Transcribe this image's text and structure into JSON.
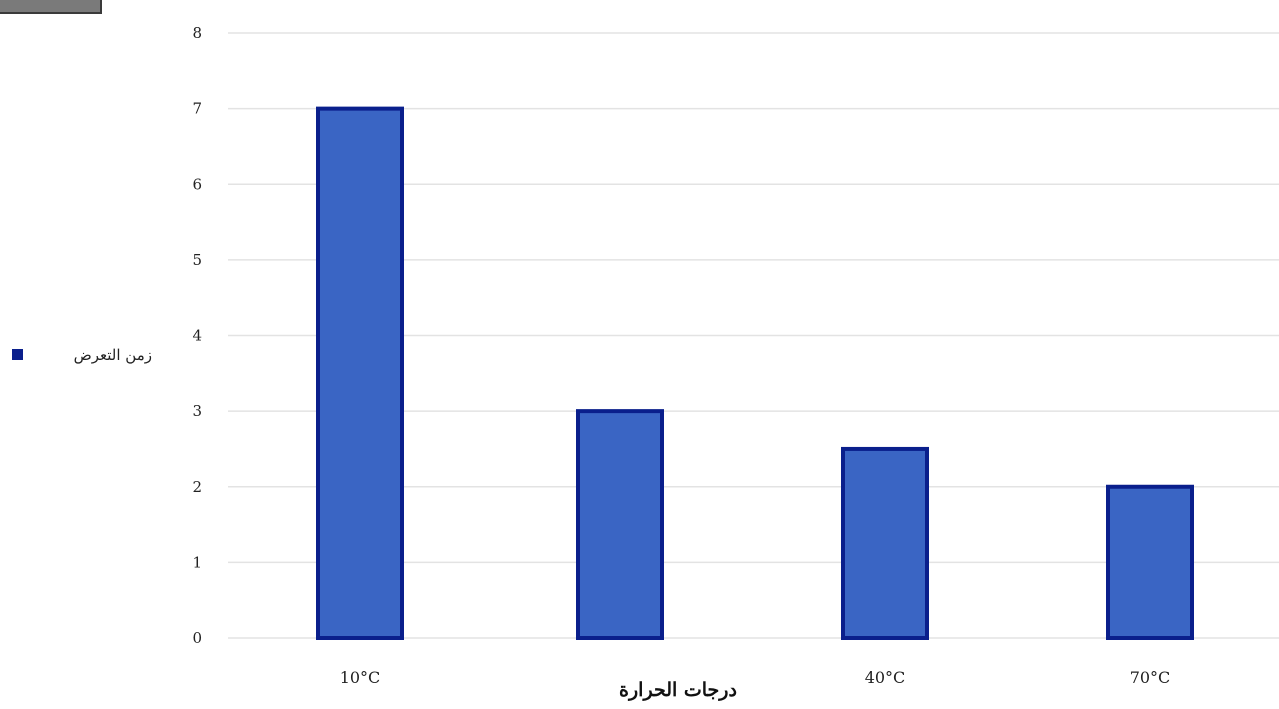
{
  "chart_data": {
    "type": "bar",
    "categories": [
      "10°C",
      "",
      "40°C",
      "70°C"
    ],
    "series": [
      {
        "name": "زمن التعرض",
        "values": [
          7,
          3,
          2.5,
          2
        ]
      }
    ],
    "xlabel": "درجات الحرارة",
    "ylabel": "",
    "ylim": [
      0,
      8
    ],
    "yticks": [
      0,
      1,
      2,
      3,
      4,
      5,
      6,
      7,
      8
    ],
    "grid": true,
    "legend": "left",
    "colors": {
      "bar_fill": "#3a65c4",
      "bar_edge": "#0a1f8c",
      "grid": "#e3e3e3",
      "legend_marker": "#0a1f8c"
    }
  }
}
